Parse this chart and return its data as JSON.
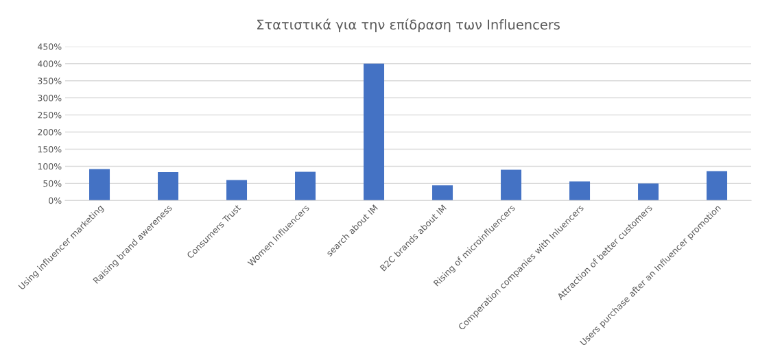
{
  "chart_data": {
    "type": "bar",
    "title": "Στατιστικά για την επίδραση των Influencers",
    "categories": [
      "Using influencer marketing",
      "Raising brand awereness",
      "Consumers Trust",
      "Women Influencers",
      "search about IM",
      "B2C brands about IM",
      "Rising of microinfluencers",
      "Comperation companies with Inluencers",
      "Attraction of better customers",
      "Users purchase after an Influencer promotion"
    ],
    "values": [
      92,
      83,
      60,
      84,
      400,
      44,
      90,
      56,
      50,
      86
    ],
    "color": "#4472c4",
    "ylim": [
      0,
      450
    ],
    "yticks": [
      {
        "value": 0,
        "label": "0%"
      },
      {
        "value": 50,
        "label": "50%"
      },
      {
        "value": 100,
        "label": "100%"
      },
      {
        "value": 150,
        "label": "150%"
      },
      {
        "value": 200,
        "label": "200%"
      },
      {
        "value": 250,
        "label": "250%"
      },
      {
        "value": 300,
        "label": "300%"
      },
      {
        "value": 350,
        "label": "350%"
      },
      {
        "value": 400,
        "label": "400%"
      },
      {
        "value": 450,
        "label": "450%"
      }
    ],
    "grid": "y"
  }
}
